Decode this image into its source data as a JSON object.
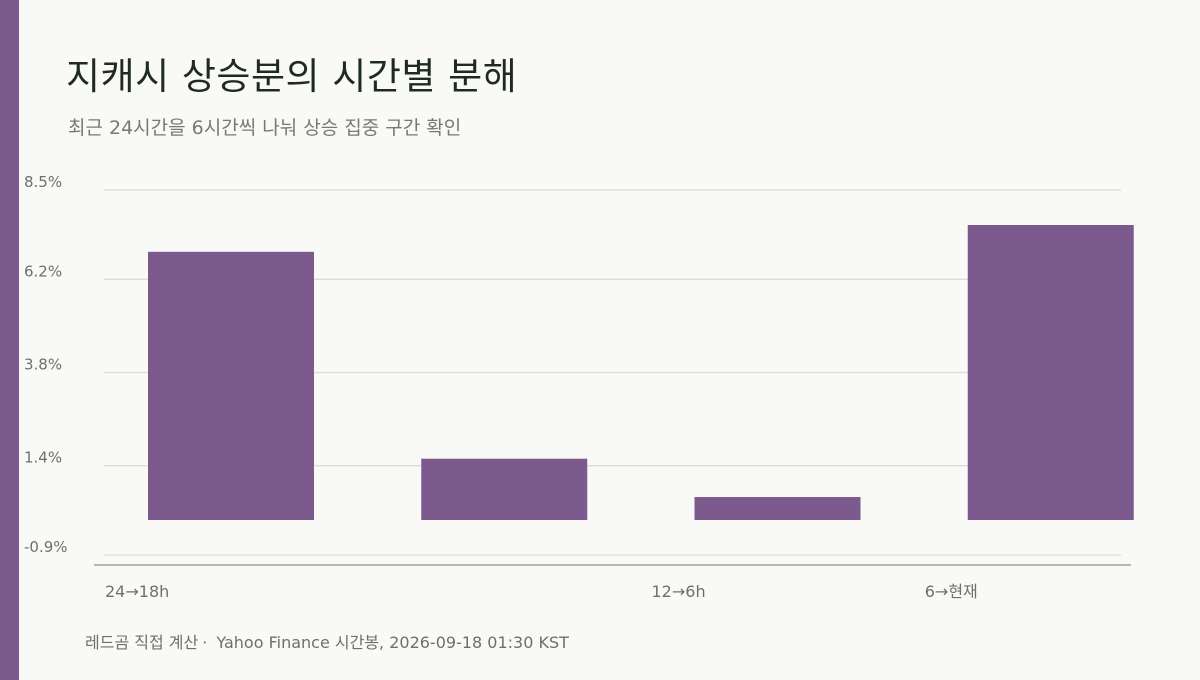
{
  "header": {
    "title": "지캐시 상승분의 시간별 분해",
    "subtitle": "최근 24시간을 6시간씩 나눠 상승 집중 구간 확인"
  },
  "footer": {
    "source": "레드곰 직접 계산",
    "separator": "·",
    "note": "Yahoo Finance 시간봉, 2026-09-18 01:30 KST"
  },
  "colors": {
    "bar": "#7d5a8e",
    "grid": "#dcdcd8",
    "axis": "#8a8f8b",
    "tick": "#6c716e"
  },
  "chart_data": {
    "type": "bar",
    "categories": [
      "24→18h",
      "",
      "12→6h",
      "6→현재"
    ],
    "values": [
      7.0,
      1.6,
      0.6,
      7.7
    ],
    "yticks": [
      -0.9,
      1.4,
      3.8,
      6.2,
      8.5
    ],
    "ytick_labels": [
      "-0.9%",
      "1.4%",
      "3.8%",
      "6.2%",
      "8.5%"
    ],
    "ylim": [
      -0.9,
      8.5
    ],
    "grid": true,
    "legend": "none"
  }
}
